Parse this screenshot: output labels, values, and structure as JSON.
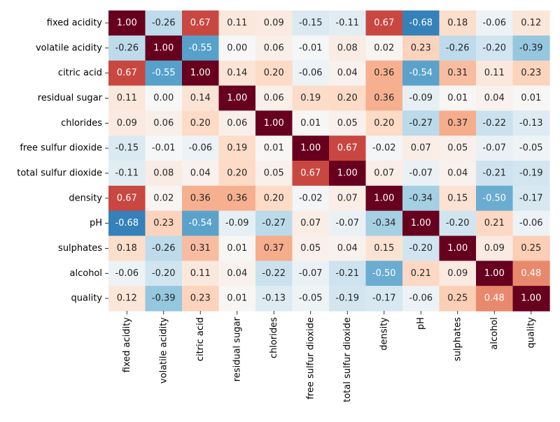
{
  "chart_data": {
    "type": "heatmap",
    "title": "",
    "xlabel": "",
    "ylabel": "",
    "variables": [
      "fixed acidity",
      "volatile acidity",
      "citric acid",
      "residual sugar",
      "chlorides",
      "free sulfur dioxide",
      "total sulfur dioxide",
      "density",
      "pH",
      "sulphates",
      "alcohol",
      "quality"
    ],
    "values": [
      [
        1.0,
        -0.26,
        0.67,
        0.11,
        0.09,
        -0.15,
        -0.11,
        0.67,
        -0.68,
        0.18,
        -0.06,
        0.12
      ],
      [
        -0.26,
        1.0,
        -0.55,
        0.0,
        0.06,
        -0.01,
        0.08,
        0.02,
        0.23,
        -0.26,
        -0.2,
        -0.39
      ],
      [
        0.67,
        -0.55,
        1.0,
        0.14,
        0.2,
        -0.06,
        0.04,
        0.36,
        -0.54,
        0.31,
        0.11,
        0.23
      ],
      [
        0.11,
        0.0,
        0.14,
        1.0,
        0.06,
        0.19,
        0.2,
        0.36,
        -0.09,
        0.01,
        0.04,
        0.01
      ],
      [
        0.09,
        0.06,
        0.2,
        0.06,
        1.0,
        0.01,
        0.05,
        0.2,
        -0.27,
        0.37,
        -0.22,
        -0.13
      ],
      [
        -0.15,
        -0.01,
        -0.06,
        0.19,
        0.01,
        1.0,
        0.67,
        -0.02,
        0.07,
        0.05,
        -0.07,
        -0.05
      ],
      [
        -0.11,
        0.08,
        0.04,
        0.2,
        0.05,
        0.67,
        1.0,
        0.07,
        -0.07,
        0.04,
        -0.21,
        -0.19
      ],
      [
        0.67,
        0.02,
        0.36,
        0.36,
        0.2,
        -0.02,
        0.07,
        1.0,
        -0.34,
        0.15,
        -0.5,
        -0.17
      ],
      [
        -0.68,
        0.23,
        -0.54,
        -0.09,
        -0.27,
        0.07,
        -0.07,
        -0.34,
        1.0,
        -0.2,
        0.21,
        -0.06
      ],
      [
        0.18,
        -0.26,
        0.31,
        0.01,
        0.37,
        0.05,
        0.04,
        0.15,
        -0.2,
        1.0,
        0.09,
        0.25
      ],
      [
        -0.06,
        -0.2,
        0.11,
        0.04,
        -0.22,
        -0.07,
        -0.21,
        -0.5,
        0.21,
        0.09,
        1.0,
        0.48
      ],
      [
        0.12,
        -0.39,
        0.23,
        0.01,
        -0.13,
        -0.05,
        -0.19,
        -0.17,
        -0.06,
        0.25,
        0.48,
        1.0
      ]
    ],
    "value_format": "2 decimals",
    "value_range": [
      -1,
      1
    ],
    "colormap": "RdBu_r",
    "colorbar": false,
    "grid": false,
    "annotations": true
  }
}
